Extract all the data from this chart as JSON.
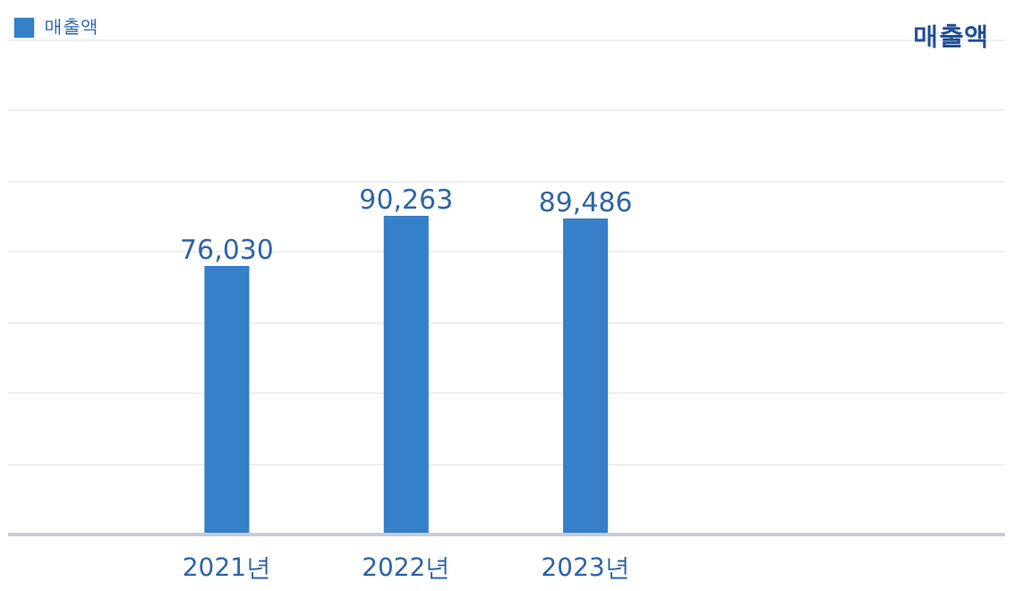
{
  "chart_data": {
    "type": "bar",
    "annotations": [
      "매출액"
    ],
    "categories": [
      "2021년",
      "2022년",
      "2023년"
    ],
    "series": [
      {
        "name": "매출액",
        "color": "#3580c8",
        "values": [
          76030,
          90263,
          89486
        ],
        "value_labels": [
          "76,030",
          "90,263",
          "89,486"
        ]
      }
    ],
    "legend": "top left",
    "grid": "y",
    "tick_labels": "x"
  }
}
